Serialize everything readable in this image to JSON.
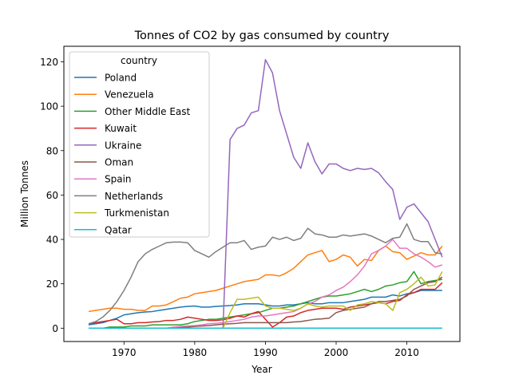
{
  "chart_data": {
    "type": "line",
    "title": "Tonnes of CO2 by gas consumed by country",
    "xlabel": "Year",
    "ylabel": "Million Tonnes",
    "xlim": [
      1961.5,
      2017.5
    ],
    "ylim": [
      -6,
      127
    ],
    "xticks": [
      1970,
      1980,
      1990,
      2000,
      2010
    ],
    "yticks": [
      0,
      20,
      40,
      60,
      80,
      100,
      120
    ],
    "grid": false,
    "legend": {
      "title": "country",
      "position": "top-left"
    },
    "x": [
      1965,
      1966,
      1967,
      1968,
      1969,
      1970,
      1971,
      1972,
      1973,
      1974,
      1975,
      1976,
      1977,
      1978,
      1979,
      1980,
      1981,
      1982,
      1983,
      1984,
      1985,
      1986,
      1987,
      1988,
      1989,
      1990,
      1991,
      1992,
      1993,
      1994,
      1995,
      1996,
      1997,
      1998,
      1999,
      2000,
      2001,
      2002,
      2003,
      2004,
      2005,
      2006,
      2007,
      2008,
      2009,
      2010,
      2011,
      2012,
      2013,
      2014,
      2015
    ],
    "series": [
      {
        "name": "Poland",
        "color": "#1f77b4",
        "values": [
          1.5,
          2,
          2.5,
          3.5,
          4.5,
          6,
          6.5,
          7,
          7.3,
          7.5,
          8,
          8.5,
          9,
          9.5,
          9.8,
          10,
          9.5,
          9.5,
          9.8,
          10,
          10.2,
          10.5,
          11,
          11,
          11,
          10.5,
          10,
          10,
          10.5,
          10.5,
          11,
          11.5,
          11,
          11,
          11.5,
          11.5,
          11.5,
          12,
          12.5,
          13,
          14,
          14,
          14,
          15,
          14.5,
          15.5,
          16,
          17,
          17,
          17,
          17
        ]
      },
      {
        "name": "Venezuela",
        "color": "#ff7f0e",
        "values": [
          7.5,
          8,
          8.5,
          9,
          9,
          8.5,
          8.5,
          8,
          8,
          10,
          10,
          10.5,
          12,
          13.5,
          14,
          15.5,
          16,
          16.5,
          17,
          18,
          19,
          20,
          21,
          21.5,
          22,
          24,
          24,
          23.5,
          25,
          27,
          30,
          33,
          34,
          35,
          30,
          31,
          33,
          32,
          28,
          31,
          30.5,
          35,
          37,
          34.5,
          34,
          31,
          32.5,
          34,
          33,
          33,
          37
        ]
      },
      {
        "name": "Other Middle East",
        "color": "#2ca02c",
        "values": [
          0,
          0,
          0,
          0.5,
          0.5,
          0.5,
          1,
          1,
          1,
          1.5,
          1.5,
          1.5,
          1.5,
          1.5,
          2,
          3,
          3.5,
          4,
          4,
          4.5,
          5,
          5.5,
          6,
          6.5,
          7,
          8,
          9,
          9,
          9.5,
          10,
          11,
          12,
          13,
          14,
          14.5,
          14.5,
          15,
          15.5,
          16.5,
          17.5,
          16.5,
          17.5,
          19,
          19.5,
          20.5,
          21,
          25.5,
          20,
          21,
          21.5,
          22
        ]
      },
      {
        "name": "Kuwait",
        "color": "#d62728",
        "values": [
          2,
          2.5,
          3,
          3.5,
          4,
          2,
          2,
          2.5,
          2.5,
          2.8,
          3,
          3.5,
          3.5,
          4,
          5,
          4.5,
          4,
          3.5,
          3.5,
          3.8,
          4.5,
          5.5,
          5,
          6.5,
          7.5,
          4,
          0.5,
          2.5,
          5,
          5.5,
          7,
          8,
          8.5,
          9,
          9,
          9,
          8.5,
          9.5,
          10,
          10.5,
          11,
          11.5,
          11,
          12,
          12.5,
          15,
          16,
          17.5,
          17.5,
          17.5,
          20.5
        ]
      },
      {
        "name": "Ukraine",
        "color": "#9467bd",
        "values": [
          0,
          0,
          0,
          0,
          0,
          0,
          0,
          0,
          0,
          0,
          0,
          0,
          0,
          0,
          0,
          0,
          0,
          0,
          0,
          0,
          85,
          90,
          91.5,
          97,
          98,
          121,
          115,
          98,
          87.5,
          77,
          72,
          83.5,
          75,
          69.5,
          74,
          74,
          72,
          71,
          72,
          71.5,
          72,
          70,
          66,
          62.5,
          49,
          54.5,
          56,
          52,
          48,
          40,
          32
        ]
      },
      {
        "name": "Oman",
        "color": "#8c564b",
        "values": [
          0,
          0,
          0,
          0,
          0,
          0,
          0,
          0,
          0,
          0,
          0,
          0,
          0,
          0.5,
          0.5,
          0.8,
          1,
          1.2,
          1.5,
          1.8,
          2,
          2.2,
          2.5,
          2.5,
          2.5,
          2.5,
          2.5,
          2.5,
          2.5,
          2.8,
          3,
          3.5,
          4,
          4.2,
          4.5,
          7,
          8,
          8.5,
          9,
          9.5,
          11,
          12,
          12,
          12.5,
          13,
          14.5,
          17.5,
          19,
          20.5,
          21,
          23
        ]
      },
      {
        "name": "Spain",
        "color": "#e377c2",
        "values": [
          0,
          0,
          0,
          0,
          0,
          0,
          0,
          0,
          0,
          0,
          0,
          0,
          0.5,
          0.8,
          1,
          1.2,
          1.5,
          2,
          2.2,
          2.5,
          3,
          3.5,
          4,
          5,
          5.5,
          5.5,
          6,
          6.5,
          7,
          7.5,
          9,
          11,
          12,
          14,
          15,
          17,
          18.5,
          21,
          24,
          28,
          33.5,
          35,
          37,
          40,
          36,
          36,
          33.5,
          32,
          30,
          27.5,
          28.5
        ]
      },
      {
        "name": "Netherlands",
        "color": "#7f7f7f",
        "values": [
          2,
          3,
          5,
          8,
          12,
          17,
          23,
          30,
          33.5,
          35.5,
          37,
          38.5,
          38.8,
          38.8,
          38.5,
          35,
          33.5,
          32,
          34.5,
          36.5,
          38.5,
          38.5,
          39.5,
          35.5,
          36.5,
          37,
          41,
          40,
          41,
          39.5,
          40.5,
          45,
          42.5,
          42,
          41,
          41,
          42,
          41.5,
          42,
          42.5,
          41.5,
          40,
          38.5,
          40.5,
          41,
          47,
          40,
          39,
          39,
          34,
          33.5
        ]
      },
      {
        "name": "Turkmenistan",
        "color": "#bcbd22",
        "values": [
          0,
          0,
          0,
          0,
          0,
          0,
          0,
          0,
          0,
          0,
          0,
          0,
          0,
          0,
          0,
          0,
          0,
          0,
          0,
          0,
          7,
          13,
          13,
          13.5,
          14,
          10,
          9,
          9,
          8.5,
          8,
          9,
          11,
          10,
          9.5,
          10,
          10,
          10,
          8,
          10.5,
          11,
          12,
          11.5,
          11,
          8,
          16,
          17.5,
          20,
          23,
          19,
          19.5,
          25.5
        ]
      },
      {
        "name": "Qatar",
        "color": "#17becf",
        "values": [
          0,
          0,
          0,
          0,
          0,
          0,
          0,
          0,
          0,
          0,
          0,
          0,
          0,
          0,
          0,
          0,
          0,
          0,
          0,
          0,
          0,
          0,
          0,
          0,
          0,
          0,
          0,
          0,
          0,
          0,
          0,
          0,
          0,
          0,
          0,
          0,
          0,
          0,
          0,
          0,
          0,
          0,
          0,
          0,
          0,
          0,
          0,
          0,
          0,
          0,
          0
        ]
      }
    ]
  }
}
